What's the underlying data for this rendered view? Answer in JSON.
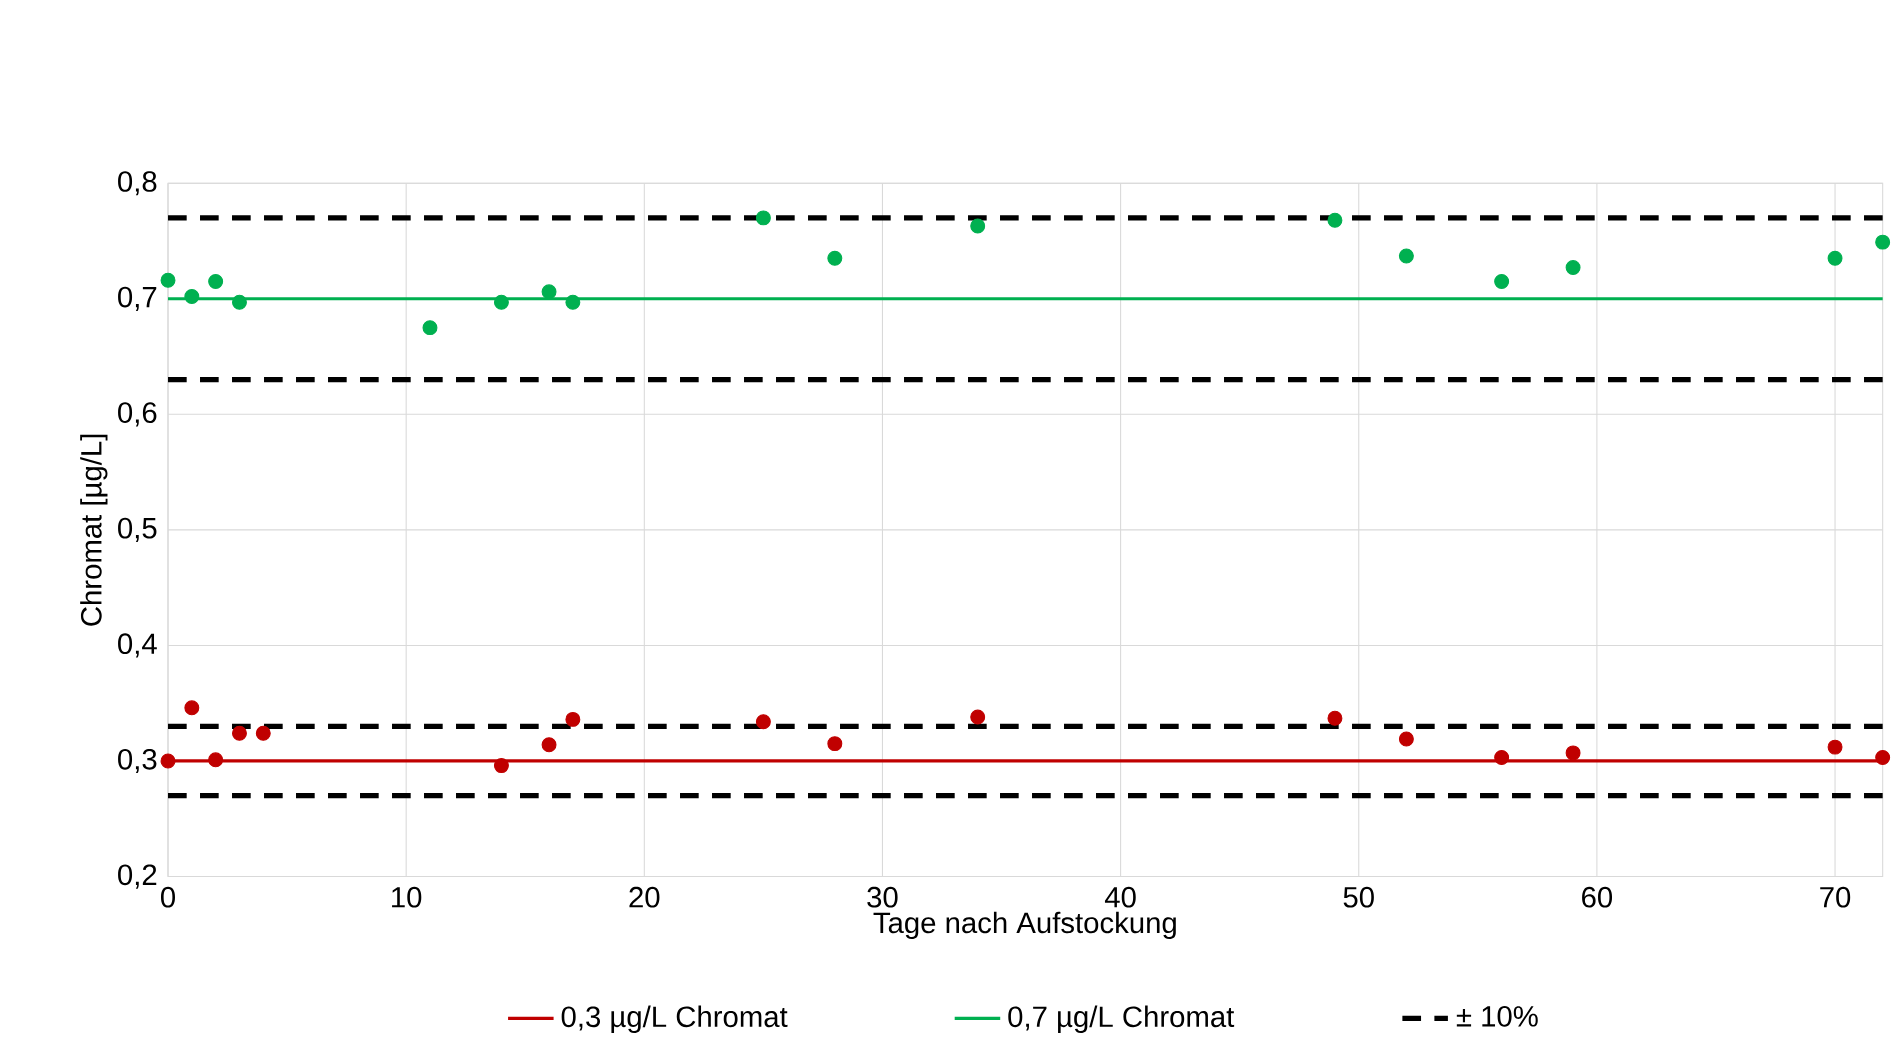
{
  "chart_data": {
    "type": "scatter",
    "xlabel": "Tage nach Aufstockung",
    "ylabel": "Chromat [µg/L]",
    "xlim": [
      0,
      72
    ],
    "ylim": [
      0.2,
      0.8
    ],
    "xticks": [
      0,
      10,
      20,
      30,
      40,
      50,
      60,
      70
    ],
    "yticks": [
      {
        "value": 0.2,
        "label": "0,2"
      },
      {
        "value": 0.3,
        "label": "0,3"
      },
      {
        "value": 0.4,
        "label": "0,4"
      },
      {
        "value": 0.5,
        "label": "0,5"
      },
      {
        "value": 0.6,
        "label": "0,6"
      },
      {
        "value": 0.7,
        "label": "0,7"
      },
      {
        "value": 0.8,
        "label": "0,8"
      }
    ],
    "grid": true,
    "legend": "bottom",
    "series": [
      {
        "marker": "circle",
        "color": "#c00000",
        "x": [
          0,
          1,
          2,
          3,
          4,
          14,
          16,
          17,
          25,
          28,
          34,
          49,
          52,
          56,
          59,
          70,
          72
        ],
        "values": [
          0.3,
          0.346,
          0.301,
          0.324,
          0.324,
          0.296,
          0.314,
          0.336,
          0.334,
          0.315,
          0.338,
          0.337,
          0.319,
          0.303,
          0.307,
          0.312,
          0.303
        ]
      },
      {
        "marker": "circle",
        "color": "#00b050",
        "x": [
          0,
          1,
          2,
          3,
          11,
          14,
          16,
          17,
          25,
          28,
          34,
          49,
          52,
          56,
          59,
          70,
          72
        ],
        "values": [
          0.716,
          0.702,
          0.715,
          0.697,
          0.675,
          0.697,
          0.706,
          0.697,
          0.77,
          0.735,
          0.763,
          0.768,
          0.737,
          0.715,
          0.727,
          0.735,
          0.749
        ]
      },
      {
        "type": "line",
        "name": "0,3 µg/L Chromat",
        "color": "#c00000",
        "line_style": "solid",
        "marker": "none",
        "x": [
          0,
          72
        ],
        "values": [
          0.3,
          0.3
        ]
      },
      {
        "type": "line",
        "name": "0,7 µg/L Chromat",
        "color": "#00b050",
        "line_style": "solid",
        "marker": "none",
        "x": [
          0,
          72
        ],
        "values": [
          0.7,
          0.7
        ]
      },
      {
        "type": "line",
        "name": "± 10%",
        "color": "#000000",
        "line_style": "dashed",
        "marker": "none",
        "x": [
          0,
          72
        ],
        "values": [
          0.77,
          0.77
        ]
      },
      {
        "type": "line",
        "color": "#000000",
        "line_style": "dashed",
        "marker": "none",
        "x": [
          0,
          72
        ],
        "values": [
          0.63,
          0.63
        ]
      },
      {
        "type": "line",
        "color": "#000000",
        "line_style": "dashed",
        "marker": "none",
        "x": [
          0,
          72
        ],
        "values": [
          0.33,
          0.33
        ]
      },
      {
        "type": "line",
        "color": "#000000",
        "line_style": "dashed",
        "marker": "none",
        "x": [
          0,
          72
        ],
        "values": [
          0.27,
          0.27
        ]
      }
    ]
  }
}
